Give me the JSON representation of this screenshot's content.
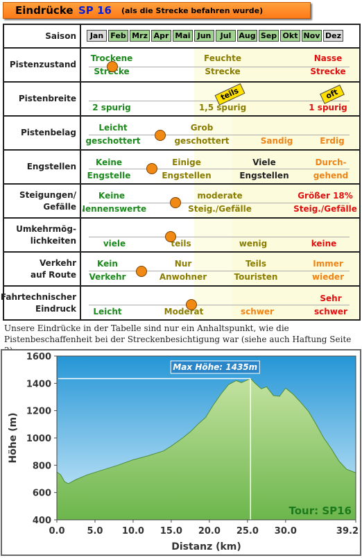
{
  "header": {
    "title_main": "Eindrücke",
    "title_code": "SP 16",
    "title_sub": "(als die Strecke befahren wurde)"
  },
  "saison": {
    "label": "Saison",
    "months": [
      {
        "name": "Jan",
        "active": false
      },
      {
        "name": "Feb",
        "active": true
      },
      {
        "name": "Mrz",
        "active": true
      },
      {
        "name": "Apr",
        "active": true
      },
      {
        "name": "Mai",
        "active": true
      },
      {
        "name": "Jun",
        "active": true
      },
      {
        "name": "Jul",
        "active": true
      },
      {
        "name": "Aug",
        "active": true
      },
      {
        "name": "Sep",
        "active": true
      },
      {
        "name": "Okt",
        "active": true
      },
      {
        "name": "Nov",
        "active": true
      },
      {
        "name": "Dez",
        "active": false
      }
    ]
  },
  "criteria": {
    "pistenzustand": {
      "label": "Pistenzustand",
      "c1a": "Trockene",
      "c1b": "Strecke",
      "c2a": "Feuchte",
      "c2b": "Strecke",
      "c3a": "Nasse",
      "c3b": "Strecke",
      "rating": 0.09
    },
    "pistenbreite": {
      "label": "Pistenbreite",
      "c1": "2 spurig",
      "c2": "1,5 spurig",
      "c3": "1 spurig",
      "tag1": "teils",
      "tag2": "oft"
    },
    "pistenbelag": {
      "label": "Pistenbelag",
      "c1a": "Leicht",
      "c1b": "geschottert",
      "c2a": "Grob",
      "c2b": "geschottert",
      "c3": "Sandig",
      "c4": "Erdig",
      "rating": 0.27
    },
    "engstellen": {
      "label": "Engstellen",
      "c1a": "Keine",
      "c1b": "Engstelle",
      "c2a": "Einige",
      "c2b": "Engstellen",
      "c3a": "Viele",
      "c3b": "Engstellen",
      "c4a": "Durch-",
      "c4b": "gehend",
      "rating": 0.24
    },
    "steigungen": {
      "label_a": "Steigungen/",
      "label_b": "Gefälle",
      "c1a": "Keine",
      "c1b": "Nennenswerte",
      "c2a": "moderate",
      "c2b": "Steig./Gefälle",
      "c3a": "Größer 18%",
      "c3b": "Steig./Gefälle",
      "rating": 0.33
    },
    "umkehr": {
      "label_a": "Umkehrmög-",
      "label_b": "lichkeiten",
      "c1": "viele",
      "c2": "teils",
      "c3": "wenig",
      "c4": "keine",
      "rating": 0.31
    },
    "verkehr": {
      "label_a": "Verkehr",
      "label_b": "auf Route",
      "c1a": "Kein",
      "c1b": "Verkehr",
      "c2a": "Nur",
      "c2b": "Anwohner",
      "c3a": "Teils",
      "c3b": "Touristen",
      "c4a": "Immer",
      "c4b": "wieder",
      "rating": 0.2
    },
    "fahrtechnik": {
      "label_a": "Fahrtechnischer",
      "label_b": "Eindruck",
      "c1": "Leicht",
      "c2": "Moderat",
      "c3": "schwer",
      "c4a": "Sehr",
      "c4b": "schwer",
      "rating": 0.39
    }
  },
  "note": "Unsere Eindrücke in der Tabelle sind nur ein Anhaltspunkt, wie die Pistenbeschaffenheit bei der Streckenbesichtigung war (siehe auch Haftung Seite 2)",
  "colors": {
    "area_top": "#c3e2a0",
    "area_bottom": "#6cb64c",
    "sky_top": "#2596d6",
    "sky_bottom": "#d4eefb",
    "title_accent": "#ff8a24"
  },
  "chart_data": {
    "type": "area",
    "xlabel": "Distanz  (km)",
    "ylabel": "Höhe  (m)",
    "xlim": [
      0,
      39.2
    ],
    "ylim": [
      400,
      1600
    ],
    "xticks": [
      "0.0",
      "5.0",
      "10.0",
      "15.0",
      "20.0",
      "25.0",
      "30.0",
      "39.2"
    ],
    "yticks": [
      "400",
      "600",
      "800",
      "1000",
      "1200",
      "1400",
      "1600"
    ],
    "annotation": "Max Höhe: 1435m",
    "max_x": 25.4,
    "max_y": 1435,
    "tour_label": "Tour: SP16",
    "grid": false,
    "x": [
      0,
      0.5,
      1.0,
      1.5,
      2.5,
      4,
      6,
      8,
      10,
      12,
      14,
      15,
      16.5,
      17.5,
      18.5,
      19.5,
      20.5,
      21.5,
      22.5,
      23.5,
      24.2,
      24.8,
      25.4,
      26.0,
      26.8,
      27.5,
      28.4,
      29.2,
      30,
      31,
      32,
      33,
      34,
      35,
      36,
      37,
      38,
      39.2
    ],
    "values": [
      750,
      730,
      680,
      665,
      695,
      730,
      765,
      800,
      840,
      870,
      905,
      940,
      1000,
      1045,
      1100,
      1150,
      1240,
      1320,
      1390,
      1420,
      1405,
      1420,
      1435,
      1400,
      1360,
      1375,
      1310,
      1305,
      1365,
      1320,
      1260,
      1195,
      1100,
      1000,
      920,
      830,
      770,
      745
    ]
  }
}
